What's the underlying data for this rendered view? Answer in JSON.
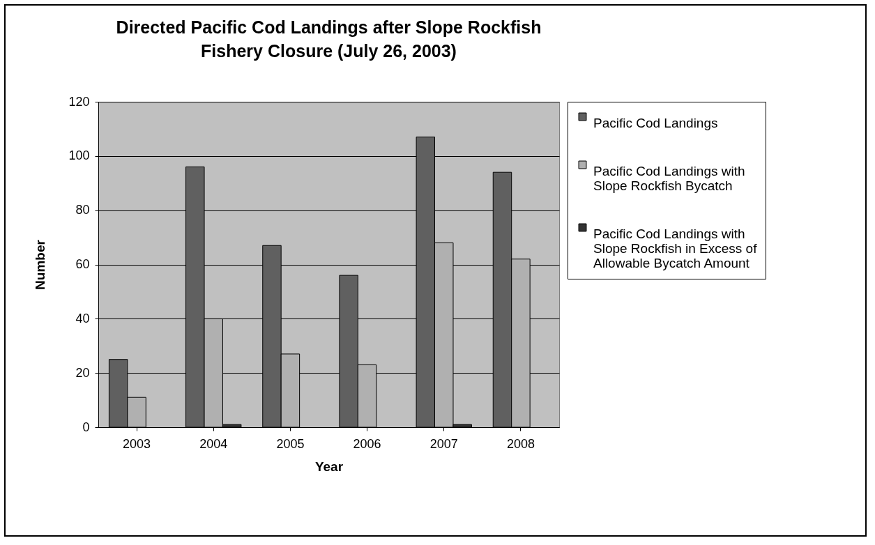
{
  "chart_data": {
    "type": "bar",
    "title": "Directed Pacific Cod Landings after Slope Rockfish Fishery Closure (July 26, 2003)",
    "xlabel": "Year",
    "ylabel": "Number",
    "categories": [
      "2003",
      "2004",
      "2005",
      "2006",
      "2007",
      "2008"
    ],
    "series": [
      {
        "name": "Pacific Cod Landings",
        "color": "#606060",
        "values": [
          25,
          96,
          67,
          56,
          107,
          94
        ]
      },
      {
        "name": "Pacific Cod Landings with Slope Rockfish Bycatch",
        "color": "#b0b0b0",
        "values": [
          11,
          40,
          27,
          23,
          68,
          62
        ]
      },
      {
        "name": "Pacific Cod Landings with Slope Rockfish in Excess of Allowable Bycatch Amount",
        "color": "#333333",
        "values": [
          0,
          1,
          0,
          0,
          1,
          0
        ]
      }
    ],
    "ylim": [
      0,
      120
    ],
    "yticks": [
      0,
      20,
      40,
      60,
      80,
      100,
      120
    ],
    "grid": "y",
    "legend": "right"
  }
}
